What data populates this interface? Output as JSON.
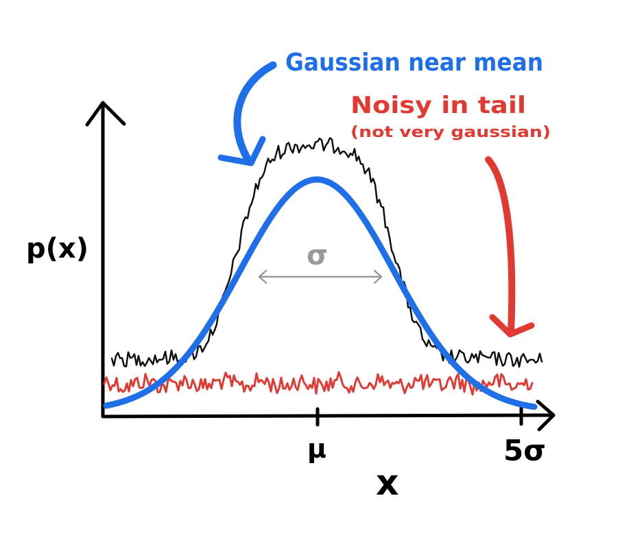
{
  "axes": {
    "y_label": "p(x)",
    "x_label": "x",
    "x_ticks": [
      "μ",
      "5σ"
    ]
  },
  "width_marker": {
    "label": "σ"
  },
  "annotations": {
    "gaussian_note": "Gaussian near mean",
    "tail_note": "Noisy in tail",
    "tail_subnote": "(not very gaussian)"
  },
  "curves": [
    {
      "name": "ideal-gaussian",
      "color": "#1e6fe8"
    },
    {
      "name": "noisy-distribution",
      "color": "#111111"
    },
    {
      "name": "noise-floor",
      "color": "#e03a33"
    }
  ],
  "colors": {
    "axis": "#000000",
    "gaussian": "#1e6fe8",
    "noise": "#e03a33",
    "marker": "#9a9a9a"
  }
}
